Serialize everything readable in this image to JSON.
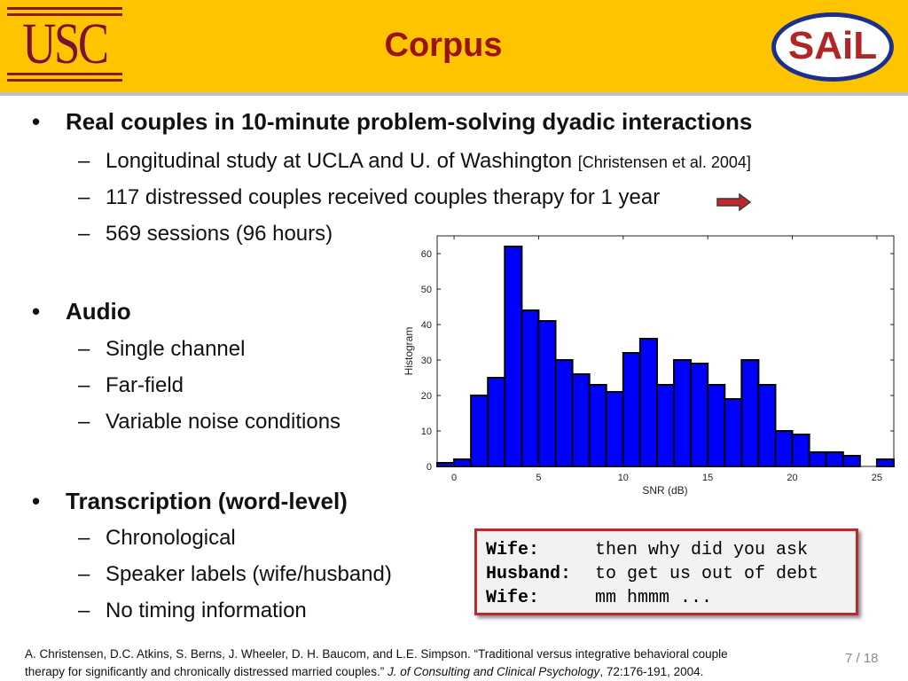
{
  "header": {
    "title": "Corpus",
    "logo_left": "USC",
    "logo_right": "SAiL",
    "colors": {
      "background": "#fec400",
      "title": "#9b1212"
    }
  },
  "bullets": [
    {
      "text": "Real couples in 10-minute problem-solving dyadic interactions",
      "sub": [
        {
          "text": "Longitudinal study at UCLA and U. of Washington ",
          "ref": "[Christensen et al. 2004]"
        },
        {
          "text": "117 distressed couples received couples therapy for 1 year"
        },
        {
          "text": "569 sessions (96 hours)"
        }
      ]
    },
    {
      "text": "Audio",
      "sub": [
        {
          "text": "Single channel"
        },
        {
          "text": "Far-field"
        },
        {
          "text": "Variable noise conditions"
        }
      ]
    },
    {
      "text": "Transcription (word-level)",
      "sub": [
        {
          "text": "Chronological"
        },
        {
          "text": "Speaker labels (wife/husband)"
        },
        {
          "text": "No timing information"
        }
      ]
    }
  ],
  "transcript": [
    {
      "speaker": "Wife:",
      "text": "then why did you ask"
    },
    {
      "speaker": "Husband:",
      "text": "to get us out of debt"
    },
    {
      "speaker": "Wife:",
      "text": "mm hmmm ..."
    }
  ],
  "citation": {
    "authors": "A. Christensen, D.C. Atkins, S. Berns, J. Wheeler, D. H. Baucom, and L.E. Simpson.  “Traditional versus integrative behavioral couple",
    "line2": "therapy for significantly and chronically distressed married couples.” ",
    "journal": "J. of Consulting and Clinical Psychology",
    "rest": ", 72:176-191, 2004."
  },
  "page": "7 / 18",
  "chart_data": {
    "type": "bar",
    "xlabel": "SNR (dB)",
    "ylabel": "Histogram",
    "xlim": [
      -1,
      26
    ],
    "ylim": [
      0,
      65
    ],
    "xticks": [
      0,
      5,
      10,
      15,
      20,
      25
    ],
    "yticks": [
      0,
      10,
      20,
      30,
      40,
      50,
      60
    ],
    "bin_width": 1,
    "x": [
      -0.5,
      0.5,
      1.5,
      2.5,
      3.5,
      4.5,
      5.5,
      6.5,
      7.5,
      8.5,
      9.5,
      10.5,
      11.5,
      12.5,
      13.5,
      14.5,
      15.5,
      16.5,
      17.5,
      18.5,
      19.5,
      20.5,
      21.5,
      22.5,
      23.5,
      24.5,
      25.5
    ],
    "values": [
      1,
      2,
      20,
      25,
      62,
      44,
      41,
      30,
      26,
      23,
      21,
      32,
      36,
      23,
      30,
      29,
      23,
      19,
      30,
      23,
      10,
      9,
      4,
      4,
      3,
      0,
      2
    ],
    "bar_color": "#0000ff",
    "grid": false
  }
}
